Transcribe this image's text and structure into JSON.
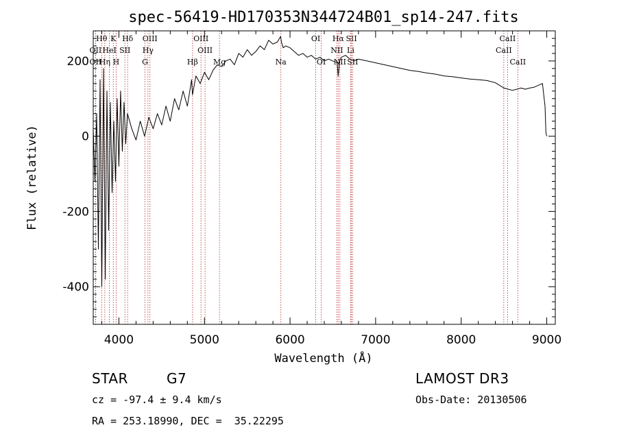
{
  "colors": {
    "spectrum": "#000000",
    "line_marker": "#b22222",
    "axis": "#000000"
  },
  "chart_data": {
    "type": "line",
    "title": "spec-56419-HD170353N344724B01_sp14-247.fits",
    "xlabel": "Wavelength (Å)",
    "ylabel": "Flux (relative)",
    "xlim": [
      3700,
      9100
    ],
    "ylim": [
      -500,
      280
    ],
    "xticks": [
      4000,
      5000,
      6000,
      7000,
      8000,
      9000
    ],
    "yticks": [
      -400,
      -200,
      0,
      200
    ],
    "series": [
      {
        "name": "flux",
        "x": [
          3700,
          3720,
          3740,
          3760,
          3780,
          3800,
          3820,
          3840,
          3860,
          3880,
          3900,
          3920,
          3940,
          3960,
          3980,
          4000,
          4020,
          4040,
          4060,
          4080,
          4100,
          4150,
          4200,
          4250,
          4300,
          4350,
          4400,
          4450,
          4500,
          4550,
          4600,
          4650,
          4700,
          4750,
          4800,
          4850,
          4860,
          4900,
          4950,
          5000,
          5050,
          5100,
          5150,
          5200,
          5250,
          5300,
          5350,
          5400,
          5450,
          5500,
          5550,
          5600,
          5650,
          5700,
          5750,
          5800,
          5850,
          5890,
          5900,
          5920,
          5950,
          6000,
          6050,
          6100,
          6150,
          6200,
          6250,
          6300,
          6350,
          6400,
          6450,
          6500,
          6550,
          6563,
          6580,
          6600,
          6650,
          6700,
          6750,
          6800,
          6900,
          7000,
          7100,
          7200,
          7300,
          7400,
          7500,
          7600,
          7700,
          7800,
          7900,
          8000,
          8100,
          8200,
          8300,
          8400,
          8500,
          8550,
          8600,
          8650,
          8700,
          8750,
          8800,
          8850,
          8900,
          8950,
          8960,
          8980,
          8990,
          9000
        ],
        "y": [
          20,
          -120,
          60,
          -300,
          150,
          -400,
          180,
          -380,
          120,
          -250,
          90,
          -150,
          40,
          -120,
          100,
          -80,
          120,
          -40,
          90,
          -20,
          60,
          20,
          -10,
          40,
          0,
          50,
          20,
          60,
          30,
          80,
          40,
          100,
          70,
          120,
          80,
          150,
          110,
          160,
          140,
          170,
          150,
          175,
          190,
          185,
          200,
          205,
          190,
          220,
          210,
          230,
          215,
          225,
          240,
          230,
          255,
          245,
          250,
          265,
          250,
          235,
          240,
          235,
          225,
          215,
          220,
          210,
          215,
          205,
          210,
          200,
          205,
          200,
          195,
          160,
          200,
          210,
          215,
          205,
          200,
          205,
          200,
          195,
          190,
          185,
          180,
          175,
          172,
          168,
          165,
          160,
          158,
          155,
          152,
          150,
          148,
          142,
          128,
          125,
          122,
          125,
          128,
          125,
          128,
          130,
          135,
          140,
          120,
          80,
          10,
          0
        ]
      }
    ],
    "line_markers": [
      {
        "label": "Hθ",
        "wavelength": 3798,
        "row": 0
      },
      {
        "label": "K",
        "wavelength": 3934,
        "row": 0
      },
      {
        "label": "Hδ",
        "wavelength": 4102,
        "row": 0
      },
      {
        "label": "OIII",
        "wavelength": 4363,
        "row": 0
      },
      {
        "label": "OIII",
        "wavelength": 4959,
        "row": 0
      },
      {
        "label": "OI",
        "wavelength": 6300,
        "row": 0
      },
      {
        "label": "Hα",
        "wavelength": 6563,
        "row": 0
      },
      {
        "label": "SII",
        "wavelength": 6717,
        "row": 0
      },
      {
        "label": "CaII",
        "wavelength": 8542,
        "row": 0
      },
      {
        "label": "OII",
        "wavelength": 3727,
        "row": 1
      },
      {
        "label": "HeI",
        "wavelength": 3889,
        "row": 1
      },
      {
        "label": "SII",
        "wavelength": 4070,
        "row": 1
      },
      {
        "label": "Hγ",
        "wavelength": 4340,
        "row": 1
      },
      {
        "label": "OIII",
        "wavelength": 5007,
        "row": 1
      },
      {
        "label": "NII",
        "wavelength": 6548,
        "row": 1
      },
      {
        "label": "Li",
        "wavelength": 6708,
        "row": 1
      },
      {
        "label": "CaII",
        "wavelength": 8498,
        "row": 1
      },
      {
        "label": "OII",
        "wavelength": 3727,
        "row": 2
      },
      {
        "label": "Hη",
        "wavelength": 3835,
        "row": 2
      },
      {
        "label": "H",
        "wavelength": 3968,
        "row": 2
      },
      {
        "label": "G",
        "wavelength": 4305,
        "row": 2
      },
      {
        "label": "Hβ",
        "wavelength": 4861,
        "row": 2
      },
      {
        "label": "Mg",
        "wavelength": 5175,
        "row": 2
      },
      {
        "label": "Na",
        "wavelength": 5893,
        "row": 2
      },
      {
        "label": "OI",
        "wavelength": 6364,
        "row": 2
      },
      {
        "label": "NII",
        "wavelength": 6583,
        "row": 2
      },
      {
        "label": "SII",
        "wavelength": 6731,
        "row": 2
      },
      {
        "label": "CaII",
        "wavelength": 8662,
        "row": 2
      }
    ]
  },
  "info": {
    "class_label": "STAR",
    "subclass": "G7",
    "survey": "LAMOST DR3",
    "velocity": "cz = -97.4 ± 9.4 km/s",
    "obs_date": "Obs-Date: 20130506",
    "coords": "RA = 253.18990, DEC =  35.22295"
  }
}
